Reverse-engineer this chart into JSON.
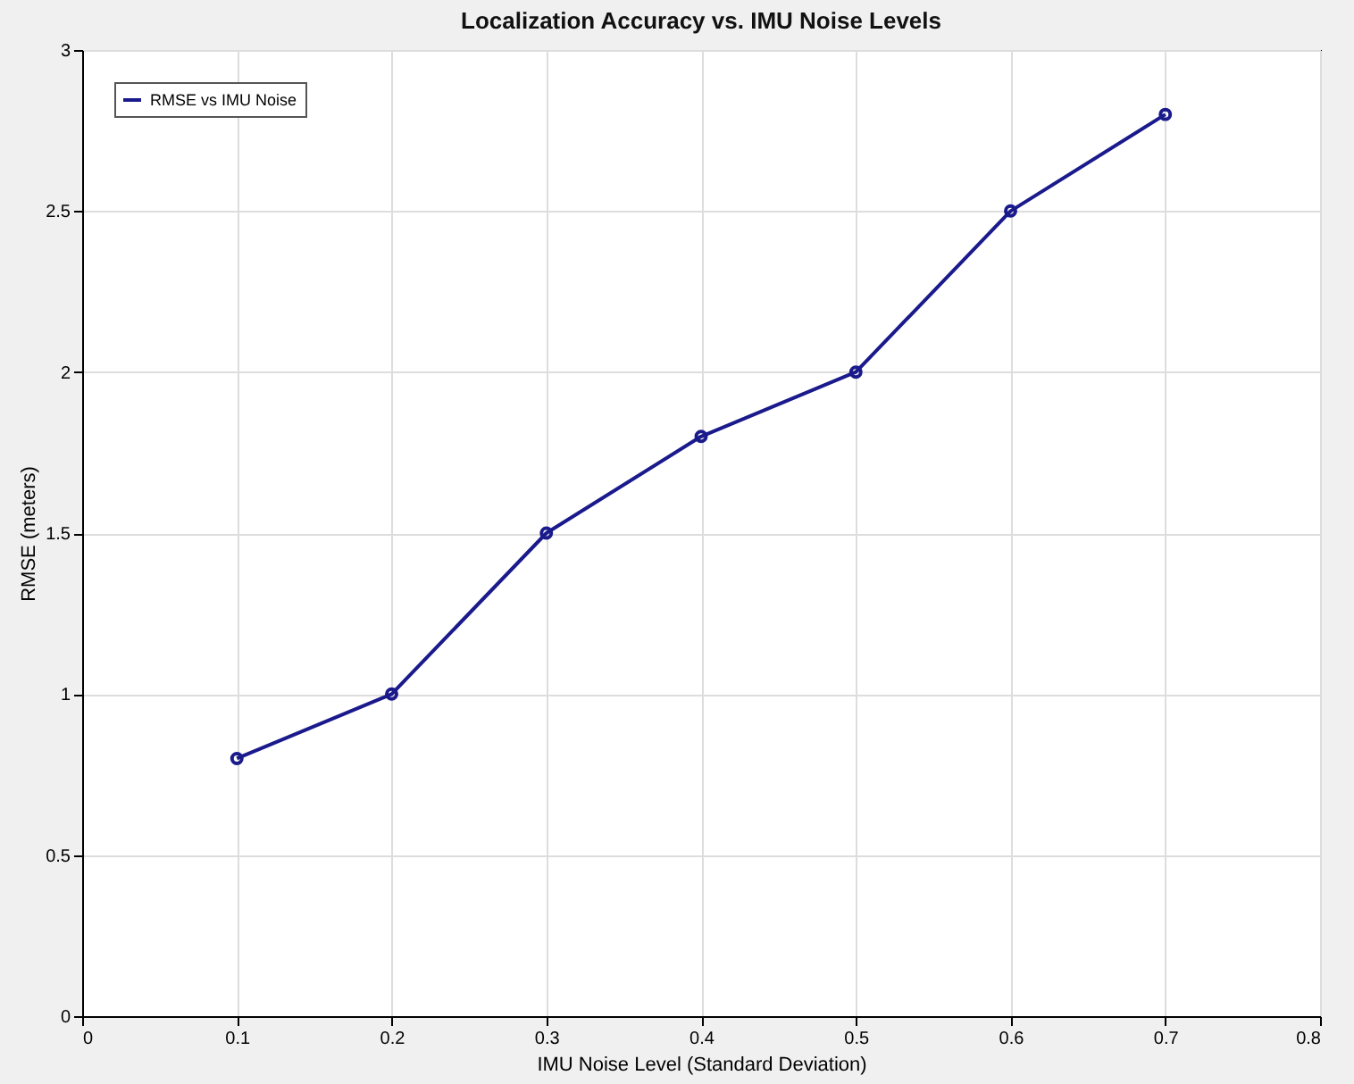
{
  "chart_data": {
    "type": "line",
    "title": "Localization Accuracy vs. IMU Noise Levels",
    "xlabel": "IMU Noise Level (Standard Deviation)",
    "ylabel": "RMSE (meters)",
    "x": [
      0.1,
      0.2,
      0.3,
      0.4,
      0.5,
      0.6,
      0.7
    ],
    "series": [
      {
        "name": "RMSE vs IMU Noise",
        "color": "#1a1a8c",
        "values": [
          0.8,
          1.0,
          1.5,
          1.8,
          2.0,
          2.5,
          2.8
        ]
      }
    ],
    "xlim": [
      0,
      0.8
    ],
    "xticks": [
      0,
      0.1,
      0.2,
      0.3,
      0.4,
      0.5,
      0.6,
      0.7,
      0.8
    ],
    "ylim": [
      0,
      3
    ],
    "yticks": [
      0,
      0.5,
      1,
      1.5,
      2,
      2.5,
      3
    ],
    "grid": true,
    "legend": "top left",
    "marker": "circle",
    "line_style": "solid"
  }
}
